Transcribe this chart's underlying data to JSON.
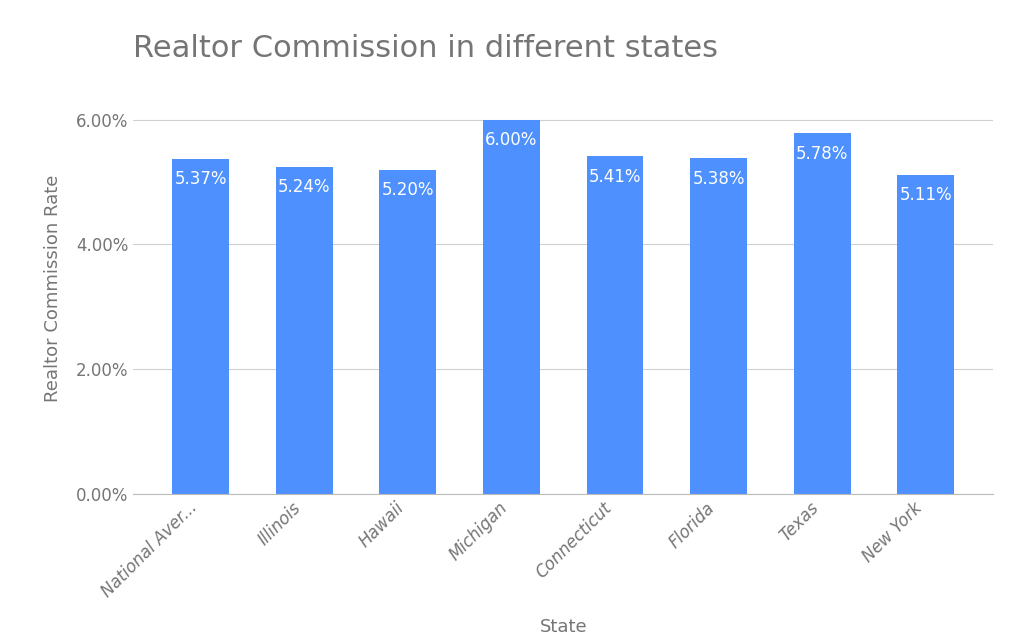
{
  "title": "Realtor Commission in different states",
  "xlabel": "State",
  "ylabel": "Realtor Commission Rate",
  "categories": [
    "National Aver...",
    "Illinois",
    "Hawaii",
    "Michigan",
    "Connecticut",
    "Florida",
    "Texas",
    "New York"
  ],
  "values": [
    5.37,
    5.24,
    5.2,
    6.0,
    5.41,
    5.38,
    5.78,
    5.11
  ],
  "bar_color": "#4d90fe",
  "label_color": "#ffffff",
  "background_color": "#ffffff",
  "grid_color": "#d0d0d0",
  "title_color": "#757575",
  "axis_label_color": "#757575",
  "tick_label_color": "#757575",
  "ylim": [
    0,
    6.6
  ],
  "yticks": [
    0.0,
    2.0,
    4.0,
    6.0
  ],
  "title_fontsize": 22,
  "axis_label_fontsize": 13,
  "tick_fontsize": 12,
  "bar_label_fontsize": 12
}
